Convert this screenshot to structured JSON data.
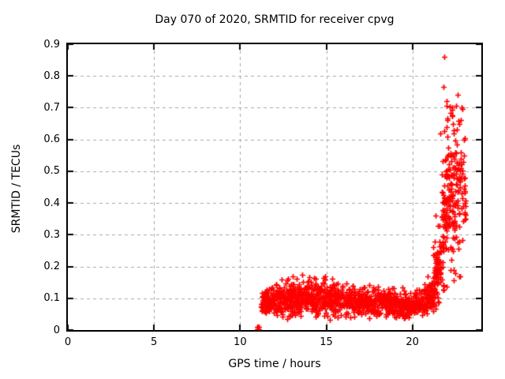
{
  "chart_data": {
    "type": "scatter",
    "title": "Day 070 of 2020, SRMTID for receiver cpvg",
    "xlabel": "GPS time / hours",
    "ylabel": "SRMTID / TECUs",
    "xlim": [
      0,
      24
    ],
    "ylim": [
      0,
      0.9
    ],
    "xticks": [
      {
        "v": 0,
        "label": "0"
      },
      {
        "v": 5,
        "label": "5"
      },
      {
        "v": 10,
        "label": "10"
      },
      {
        "v": 15,
        "label": "15"
      },
      {
        "v": 20,
        "label": "20"
      }
    ],
    "yticks": [
      {
        "v": 0,
        "label": "0"
      },
      {
        "v": 0.1,
        "label": "0.1"
      },
      {
        "v": 0.2,
        "label": "0.2"
      },
      {
        "v": 0.3,
        "label": "0.3"
      },
      {
        "v": 0.4,
        "label": "0.4"
      },
      {
        "v": 0.5,
        "label": "0.5"
      },
      {
        "v": 0.6,
        "label": "0.6"
      },
      {
        "v": 0.7,
        "label": "0.7"
      },
      {
        "v": 0.8,
        "label": "0.8"
      },
      {
        "v": 0.9,
        "label": "0.9"
      },
      {
        "v": 0.9,
        "label": ""
      }
    ],
    "grid": true,
    "legend": "none",
    "marker": "plus",
    "marker_color": "#ff0000",
    "grid_color": "#a6a6a6",
    "border_color": "#000000",
    "series": [
      {
        "name": "SRMTID",
        "data_x_start": 11.0,
        "data_x_end": 23.1,
        "segments": [
          {
            "x0": 11.2,
            "x1": 12.0,
            "n": 95,
            "m0": 0.085,
            "m1": 0.095,
            "sd": 0.022,
            "lo": 0.03,
            "hi": 0.16
          },
          {
            "x0": 12.0,
            "x1": 13.0,
            "n": 115,
            "m0": 0.095,
            "m1": 0.1,
            "sd": 0.024,
            "lo": 0.035,
            "hi": 0.165
          },
          {
            "x0": 13.0,
            "x1": 14.0,
            "n": 115,
            "m0": 0.1,
            "m1": 0.105,
            "sd": 0.026,
            "lo": 0.04,
            "hi": 0.175
          },
          {
            "x0": 14.0,
            "x1": 15.0,
            "n": 115,
            "m0": 0.1,
            "m1": 0.1,
            "sd": 0.026,
            "lo": 0.04,
            "hi": 0.17
          },
          {
            "x0": 15.0,
            "x1": 16.0,
            "n": 115,
            "m0": 0.095,
            "m1": 0.095,
            "sd": 0.024,
            "lo": 0.03,
            "hi": 0.165
          },
          {
            "x0": 16.0,
            "x1": 17.0,
            "n": 115,
            "m0": 0.09,
            "m1": 0.09,
            "sd": 0.022,
            "lo": 0.035,
            "hi": 0.15
          },
          {
            "x0": 17.0,
            "x1": 18.0,
            "n": 115,
            "m0": 0.085,
            "m1": 0.085,
            "sd": 0.022,
            "lo": 0.03,
            "hi": 0.15
          },
          {
            "x0": 18.0,
            "x1": 19.0,
            "n": 115,
            "m0": 0.09,
            "m1": 0.085,
            "sd": 0.022,
            "lo": 0.03,
            "hi": 0.155
          },
          {
            "x0": 19.0,
            "x1": 19.8,
            "n": 90,
            "m0": 0.08,
            "m1": 0.075,
            "sd": 0.02,
            "lo": 0.025,
            "hi": 0.14
          },
          {
            "x0": 19.8,
            "x1": 20.6,
            "n": 90,
            "m0": 0.075,
            "m1": 0.085,
            "sd": 0.018,
            "lo": 0.03,
            "hi": 0.14
          },
          {
            "x0": 20.6,
            "x1": 21.2,
            "n": 80,
            "m0": 0.09,
            "m1": 0.12,
            "sd": 0.025,
            "lo": 0.05,
            "hi": 0.2
          },
          {
            "x0": 21.2,
            "x1": 21.7,
            "n": 80,
            "m0": 0.13,
            "m1": 0.25,
            "sd": 0.06,
            "lo": 0.06,
            "hi": 0.55
          },
          {
            "x0": 21.7,
            "x1": 22.1,
            "n": 90,
            "m0": 0.3,
            "m1": 0.45,
            "sd": 0.11,
            "lo": 0.12,
            "hi": 0.78
          },
          {
            "x0": 22.1,
            "x1": 22.6,
            "n": 90,
            "m0": 0.45,
            "m1": 0.45,
            "sd": 0.12,
            "lo": 0.15,
            "hi": 0.72
          },
          {
            "x0": 22.6,
            "x1": 23.1,
            "n": 55,
            "m0": 0.44,
            "m1": 0.42,
            "sd": 0.13,
            "lo": 0.15,
            "hi": 0.72
          }
        ],
        "outliers": [
          [
            11.0,
            0.002
          ],
          [
            11.04,
            0.002
          ],
          [
            11.08,
            0.002
          ],
          [
            11.0,
            0.01
          ],
          [
            11.04,
            0.01
          ],
          [
            11.08,
            0.01
          ],
          [
            12.4,
            0.158
          ],
          [
            13.05,
            0.168
          ],
          [
            13.62,
            0.175
          ],
          [
            14.3,
            0.164
          ],
          [
            14.92,
            0.168
          ],
          [
            15.35,
            0.161
          ],
          [
            21.6,
            0.62
          ],
          [
            21.8,
            0.766
          ],
          [
            21.85,
            0.861
          ],
          [
            21.97,
            0.705
          ],
          [
            22.0,
            0.72
          ],
          [
            22.3,
            0.7
          ],
          [
            22.62,
            0.74
          ],
          [
            22.86,
            0.7
          ],
          [
            22.9,
            0.697
          ],
          [
            23.0,
            0.55
          ],
          [
            22.4,
            0.19
          ],
          [
            22.75,
            0.17
          ]
        ]
      }
    ]
  }
}
